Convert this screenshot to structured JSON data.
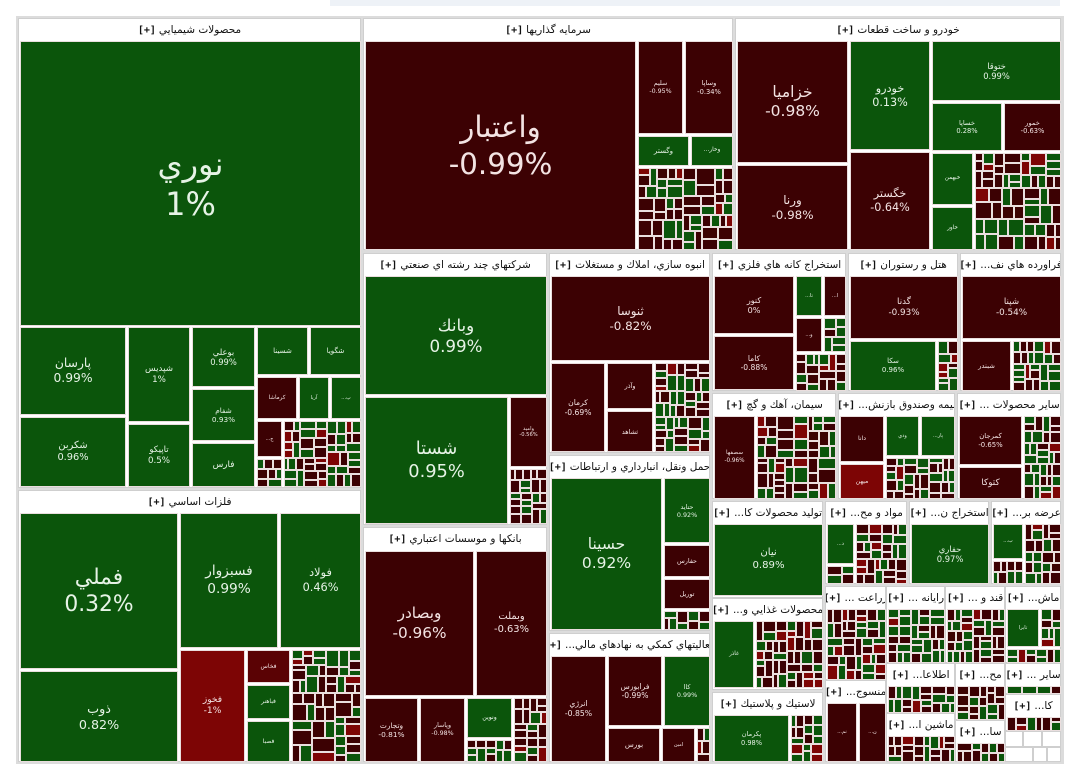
{
  "expand_label": "[+]",
  "colors": {
    "positive": "#0b550b",
    "negative": "#3c0103",
    "mid_negative": "#5a0204",
    "strong_negative": "#7d0505",
    "text_positive": "#e6f3e6",
    "text_negative": "#f3e3e3"
  },
  "sectors": [
    {
      "title": "محصولات شيميايي",
      "stocks": [
        {
          "symbol": "نوري",
          "change": "1%",
          "tone": "positive"
        },
        {
          "symbol": "پارسان",
          "change": "0.99%",
          "tone": "positive"
        },
        {
          "symbol": "شكربن",
          "change": "0.96%",
          "tone": "positive"
        },
        {
          "symbol": "شپديس",
          "change": "1%",
          "tone": "positive"
        },
        {
          "symbol": "تاپيكو",
          "change": "0.5%",
          "tone": "positive"
        },
        {
          "symbol": "بوعلي",
          "change": "0.99%",
          "tone": "positive"
        },
        {
          "symbol": "شفام",
          "change": "0.93%",
          "tone": "positive"
        },
        {
          "symbol": "فارس",
          "tone": "positive"
        },
        {
          "symbol": "شسينا",
          "tone": "positive"
        },
        {
          "symbol": "شگويا",
          "tone": "positive"
        },
        {
          "symbol": "كرماشا",
          "tone": "negative"
        },
        {
          "symbol": "آريا",
          "tone": "positive"
        },
        {
          "symbol": "پ...",
          "tone": "positive"
        },
        {
          "symbol": "ج...",
          "tone": "negative"
        }
      ]
    },
    {
      "title": "فلزات اساسي",
      "stocks": [
        {
          "symbol": "فملي",
          "change": "0.32%",
          "tone": "positive"
        },
        {
          "symbol": "ذوب",
          "change": "0.82%",
          "tone": "positive"
        },
        {
          "symbol": "فسبزوار",
          "change": "0.99%",
          "tone": "positive"
        },
        {
          "symbol": "فولاد",
          "change": "0.46%",
          "tone": "positive"
        },
        {
          "symbol": "فخوز",
          "change": "-1%",
          "tone": "strong_negative"
        },
        {
          "symbol": "فخاس",
          "tone": "mid_negative"
        },
        {
          "symbol": "فباهنر",
          "tone": "positive"
        },
        {
          "symbol": "فصبا",
          "tone": "positive"
        }
      ]
    },
    {
      "title": "سرمايه گذاريها",
      "stocks": [
        {
          "symbol": "واعتبار",
          "change": "-0.99%",
          "tone": "negative"
        },
        {
          "symbol": "سليم",
          "change": "-0.95%",
          "tone": "negative"
        },
        {
          "symbol": "وساپا",
          "change": "-0.34%",
          "tone": "negative"
        },
        {
          "symbol": "وگستر",
          "tone": "positive"
        },
        {
          "symbol": "وخار...",
          "tone": "positive"
        }
      ]
    },
    {
      "title": "خودرو و ساخت قطعات",
      "stocks": [
        {
          "symbol": "خزاميا",
          "change": "-0.98%",
          "tone": "negative"
        },
        {
          "symbol": "ورنا",
          "change": "-0.98%",
          "tone": "negative"
        },
        {
          "symbol": "خودرو",
          "change": "0.13%",
          "tone": "positive"
        },
        {
          "symbol": "خگستر",
          "change": "-0.64%",
          "tone": "negative"
        },
        {
          "symbol": "ختوقا",
          "change": "0.99%",
          "tone": "positive"
        },
        {
          "symbol": "خساپا",
          "change": "0.28%",
          "tone": "positive"
        },
        {
          "symbol": "خمور",
          "change": "-0.63%",
          "tone": "negative"
        },
        {
          "symbol": "خبهمن",
          "tone": "positive"
        },
        {
          "symbol": "خاور",
          "tone": "positive"
        }
      ]
    },
    {
      "title": "شركتهاي چند رشته اي صنعتي",
      "stocks": [
        {
          "symbol": "وبانك",
          "change": "0.99%",
          "tone": "positive"
        },
        {
          "symbol": "شستا",
          "change": "0.95%",
          "tone": "positive"
        },
        {
          "symbol": "واميد",
          "change": "-0.56%",
          "tone": "negative"
        }
      ]
    },
    {
      "title": "بانكها و موسسات اعتباري",
      "stocks": [
        {
          "symbol": "وبصادر",
          "change": "-0.96%",
          "tone": "negative"
        },
        {
          "symbol": "وبملت",
          "change": "-0.63%",
          "tone": "negative"
        },
        {
          "symbol": "وتجارت",
          "change": "-0.81%",
          "tone": "negative"
        },
        {
          "symbol": "وپاسار",
          "change": "-0.98%",
          "tone": "negative"
        },
        {
          "symbol": "ونوين",
          "tone": "positive"
        }
      ]
    },
    {
      "title": "انبوه سازي، املاك و مستغلات",
      "stocks": [
        {
          "symbol": "ثنوسا",
          "change": "-0.82%",
          "tone": "negative"
        },
        {
          "symbol": "كرمان",
          "change": "-0.69%",
          "tone": "negative"
        },
        {
          "symbol": "وآذر",
          "tone": "negative"
        },
        {
          "symbol": "ثشاهد",
          "tone": "negative"
        }
      ]
    },
    {
      "title": "حمل ونقل، انبارداري و ارتباطات",
      "stocks": [
        {
          "symbol": "حسينا",
          "change": "0.92%",
          "tone": "positive"
        },
        {
          "symbol": "حتايد",
          "change": "0.92%",
          "tone": "positive"
        },
        {
          "symbol": "حفارس",
          "tone": "negative"
        },
        {
          "symbol": "توريل",
          "tone": "negative"
        }
      ]
    },
    {
      "title": "فعاليتهاي كمكي به نهادهاي مالي...",
      "stocks": [
        {
          "symbol": "انرژي",
          "change": "-0.85%",
          "tone": "negative"
        },
        {
          "symbol": "فرابورس",
          "change": "-0.99%",
          "tone": "negative"
        },
        {
          "symbol": "كاا",
          "change": "0.99%",
          "tone": "positive"
        },
        {
          "symbol": "بورس",
          "tone": "negative"
        },
        {
          "symbol": "امين",
          "tone": "negative"
        }
      ]
    },
    {
      "title": "استخراج كانه هاي فلزي",
      "stocks": [
        {
          "symbol": "كنور",
          "change": "0%",
          "tone": "negative"
        },
        {
          "symbol": "كاما",
          "change": "-0.88%",
          "tone": "negative"
        },
        {
          "symbol": "تا...",
          "tone": "positive"
        },
        {
          "symbol": "ا...",
          "tone": "negative"
        },
        {
          "symbol": "و...",
          "tone": "negative"
        }
      ]
    },
    {
      "title": "هتل و رستوران",
      "stocks": [
        {
          "symbol": "گدنا",
          "change": "-0.93%",
          "tone": "negative"
        },
        {
          "symbol": "سكا",
          "change": "0.96%",
          "tone": "positive"
        }
      ]
    },
    {
      "title": "فراورده هاي نف...",
      "stocks": [
        {
          "symbol": "شپنا",
          "change": "-0.54%",
          "tone": "negative"
        },
        {
          "symbol": "شبندر",
          "tone": "negative"
        }
      ]
    },
    {
      "title": "سيمان، آهك و گچ",
      "stocks": [
        {
          "symbol": "سصفها",
          "change": "-0.96%",
          "tone": "negative"
        }
      ]
    },
    {
      "title": "بيمه وصندوق بازنش...",
      "stocks": [
        {
          "symbol": "دانا",
          "tone": "negative"
        },
        {
          "symbol": "ميهن",
          "tone": "strong_negative"
        },
        {
          "symbol": "ودي",
          "tone": "positive"
        },
        {
          "symbol": "پار...",
          "tone": "positive"
        }
      ]
    },
    {
      "title": "ساير محصولات ...",
      "stocks": [
        {
          "symbol": "كمرجان",
          "change": "-0.65%",
          "tone": "negative"
        },
        {
          "symbol": "كتوكا",
          "tone": "negative"
        }
      ]
    },
    {
      "title": "توليد محصولات كا...",
      "stocks": [
        {
          "symbol": "نيان",
          "change": "0.89%",
          "tone": "positive"
        }
      ]
    },
    {
      "title": "مواد و مح...",
      "stocks": [
        {
          "symbol": "د...",
          "tone": "positive"
        }
      ]
    },
    {
      "title": "استخراج ن...",
      "stocks": [
        {
          "symbol": "حفاري",
          "change": "0.97%",
          "tone": "positive"
        }
      ]
    },
    {
      "title": "عرضه بر...",
      "stocks": [
        {
          "symbol": "ب...",
          "tone": "positive"
        }
      ]
    },
    {
      "title": "محصولات غذايي و...",
      "stocks": [
        {
          "symbol": "غاذر",
          "tone": "positive"
        }
      ]
    },
    {
      "title": "لاستيك و پلاستيك",
      "stocks": [
        {
          "symbol": "پكرمان",
          "change": "0.98%",
          "tone": "positive"
        }
      ]
    },
    {
      "title": "زراعت ...",
      "stocks": []
    },
    {
      "title": "رايانه ...",
      "stocks": []
    },
    {
      "title": "قند و ...",
      "stocks": []
    },
    {
      "title": "ماش...",
      "stocks": [
        {
          "symbol": "تايرا",
          "tone": "positive"
        }
      ]
    },
    {
      "title": "منسوج...",
      "stocks": [
        {
          "symbol": "نم...",
          "tone": "negative"
        },
        {
          "symbol": "ن...",
          "tone": "negative"
        }
      ]
    },
    {
      "title": "اطلاعا...",
      "stocks": []
    },
    {
      "title": "مح...",
      "stocks": []
    },
    {
      "title": "ساير ...",
      "stocks": []
    },
    {
      "title": "ماشين ا...",
      "stocks": []
    },
    {
      "title": "سا...",
      "stocks": []
    },
    {
      "title": "كا...",
      "stocks": []
    }
  ]
}
